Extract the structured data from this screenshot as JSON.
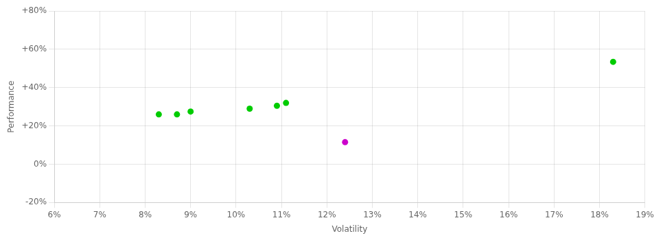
{
  "chart_data": {
    "type": "scatter",
    "xlabel": "Volatility",
    "ylabel": "Performance",
    "xlim": [
      0.06,
      0.19
    ],
    "ylim": [
      -0.2,
      0.8
    ],
    "xticks": [
      {
        "value": 0.06,
        "label": "6%"
      },
      {
        "value": 0.07,
        "label": "7%"
      },
      {
        "value": 0.08,
        "label": "8%"
      },
      {
        "value": 0.09,
        "label": "9%"
      },
      {
        "value": 0.1,
        "label": "10%"
      },
      {
        "value": 0.11,
        "label": "11%"
      },
      {
        "value": 0.12,
        "label": "12%"
      },
      {
        "value": 0.13,
        "label": "13%"
      },
      {
        "value": 0.14,
        "label": "14%"
      },
      {
        "value": 0.15,
        "label": "15%"
      },
      {
        "value": 0.16,
        "label": "16%"
      },
      {
        "value": 0.17,
        "label": "17%"
      },
      {
        "value": 0.18,
        "label": "18%"
      },
      {
        "value": 0.19,
        "label": "19%"
      }
    ],
    "yticks": [
      {
        "value": -0.2,
        "label": "-20%"
      },
      {
        "value": 0.0,
        "label": "0%"
      },
      {
        "value": 0.2,
        "label": "+20%"
      },
      {
        "value": 0.4,
        "label": "+40%"
      },
      {
        "value": 0.6,
        "label": "+60%"
      },
      {
        "value": 0.8,
        "label": "+80%"
      }
    ],
    "grid": true,
    "series": [
      {
        "color": "#00cc00",
        "x": [
          0.083,
          0.087,
          0.09,
          0.103,
          0.109,
          0.111,
          0.183
        ],
        "values": [
          0.26,
          0.26,
          0.275,
          0.29,
          0.305,
          0.32,
          0.535
        ]
      },
      {
        "color": "#cc00cc",
        "x": [
          0.124
        ],
        "values": [
          0.115
        ]
      }
    ]
  }
}
